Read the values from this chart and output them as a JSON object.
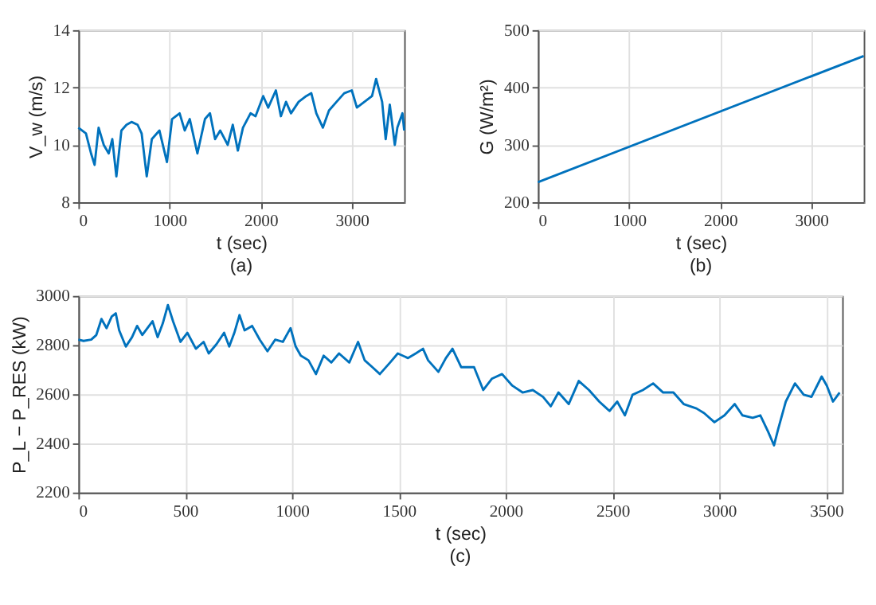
{
  "chart_data": [
    {
      "type": "line",
      "xlabel": "t (sec)",
      "ylabel": "V_w (m/s)",
      "annotations": [
        "(a)"
      ],
      "color": "#0072bd",
      "grid": true,
      "xlim": [
        0,
        3575
      ],
      "ylim": [
        8,
        14
      ],
      "xticks": [
        0,
        1000,
        2000,
        3000
      ],
      "yticks": [
        8,
        10,
        12,
        14
      ],
      "x": [
        0,
        83,
        139,
        178,
        222,
        278,
        333,
        372,
        417,
        472,
        528,
        583,
        650,
        694,
        750,
        806,
        889,
        972,
        1028,
        1111,
        1167,
        1222,
        1306,
        1389,
        1444,
        1500,
        1556,
        1639,
        1694,
        1750,
        1806,
        1889,
        1944,
        2028,
        2083,
        2167,
        2222,
        2278,
        2333,
        2417,
        2500,
        2556,
        2611,
        2683,
        2750,
        2833,
        2917,
        3000,
        3056,
        3139,
        3222,
        3267,
        3333,
        3372,
        3417,
        3472,
        3500,
        3556,
        3575
      ],
      "values": [
        10.6,
        10.4,
        9.7,
        9.3,
        10.6,
        10.0,
        9.7,
        10.2,
        8.9,
        10.5,
        10.7,
        10.8,
        10.7,
        10.4,
        8.9,
        10.2,
        10.5,
        9.4,
        10.9,
        11.1,
        10.5,
        10.9,
        9.7,
        10.9,
        11.1,
        10.2,
        10.5,
        10.0,
        10.7,
        9.8,
        10.6,
        11.1,
        11.0,
        11.7,
        11.3,
        11.9,
        11.0,
        11.5,
        11.1,
        11.5,
        11.7,
        11.8,
        11.1,
        10.6,
        11.2,
        11.5,
        11.8,
        11.9,
        11.3,
        11.5,
        11.7,
        12.3,
        11.5,
        10.2,
        11.4,
        10.0,
        10.6,
        11.1,
        10.5
      ]
    },
    {
      "type": "line",
      "xlabel": "t (sec)",
      "ylabel": "G (W/m²)",
      "annotations": [
        "(b)"
      ],
      "color": "#0072bd",
      "grid": true,
      "xlim": [
        0,
        3575
      ],
      "ylim": [
        200,
        500
      ],
      "xticks": [
        0,
        1000,
        2000,
        3000
      ],
      "yticks": [
        200,
        300,
        400,
        500
      ],
      "x": [
        0,
        3575
      ],
      "values": [
        235,
        455
      ]
    },
    {
      "type": "line",
      "xlabel": "t (sec)",
      "ylabel": "P_L − P_RES (kW)",
      "annotations": [
        "(c)"
      ],
      "color": "#0072bd",
      "grid": true,
      "xlim": [
        0,
        3575
      ],
      "ylim": [
        2200,
        3000
      ],
      "xticks": [
        0,
        500,
        1000,
        1500,
        2000,
        2500,
        3000,
        3500
      ],
      "yticks": [
        2200,
        2400,
        2600,
        2800,
        3000
      ],
      "x": [
        0,
        24,
        60,
        84,
        108,
        132,
        156,
        175,
        191,
        222,
        251,
        275,
        299,
        347,
        371,
        395,
        419,
        443,
        478,
        510,
        550,
        586,
        610,
        646,
        682,
        706,
        730,
        754,
        778,
        813,
        849,
        885,
        921,
        957,
        993,
        1017,
        1041,
        1077,
        1112,
        1148,
        1184,
        1220,
        1268,
        1309,
        1340,
        1376,
        1411,
        1459,
        1495,
        1543,
        1579,
        1613,
        1637,
        1685,
        1720,
        1751,
        1792,
        1852,
        1895,
        1935,
        1983,
        2031,
        2079,
        2127,
        2175,
        2211,
        2247,
        2295,
        2342,
        2390,
        2438,
        2486,
        2522,
        2558,
        2594,
        2642,
        2690,
        2737,
        2785,
        2833,
        2893,
        2929,
        2977,
        3024,
        3072,
        3108,
        3156,
        3192,
        3228,
        3256,
        3275,
        3311,
        3354,
        3395,
        3431,
        3479,
        3503,
        3532,
        3563
      ],
      "values": [
        2822,
        2817,
        2822,
        2841,
        2906,
        2869,
        2916,
        2929,
        2860,
        2794,
        2832,
        2878,
        2841,
        2897,
        2832,
        2888,
        2963,
        2897,
        2813,
        2850,
        2785,
        2813,
        2766,
        2803,
        2850,
        2794,
        2850,
        2922,
        2860,
        2878,
        2822,
        2775,
        2822,
        2813,
        2869,
        2794,
        2757,
        2738,
        2682,
        2757,
        2729,
        2766,
        2729,
        2813,
        2738,
        2710,
        2682,
        2729,
        2766,
        2747,
        2766,
        2785,
        2738,
        2691,
        2747,
        2785,
        2710,
        2710,
        2617,
        2663,
        2682,
        2635,
        2607,
        2617,
        2589,
        2551,
        2607,
        2560,
        2654,
        2617,
        2570,
        2532,
        2570,
        2514,
        2598,
        2617,
        2644,
        2607,
        2607,
        2560,
        2542,
        2523,
        2486,
        2514,
        2560,
        2514,
        2504,
        2514,
        2448,
        2392,
        2457,
        2570,
        2644,
        2598,
        2589,
        2672,
        2635,
        2570,
        2607
      ]
    }
  ]
}
